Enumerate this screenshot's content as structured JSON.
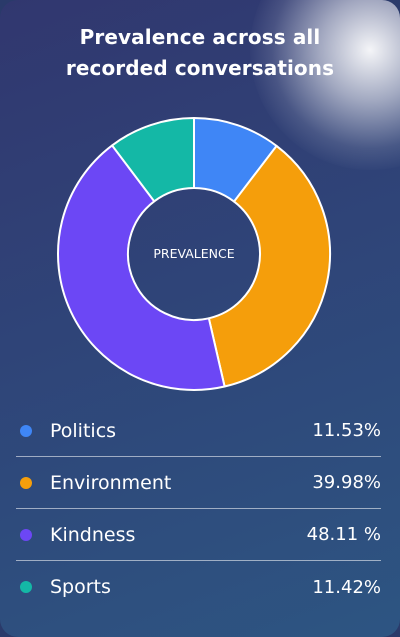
{
  "title": "Prevalence across all recorded conversations",
  "chart_data": {
    "type": "pie",
    "center_label": "PREVALENCE",
    "categories": [
      "Politics",
      "Environment",
      "Kindness",
      "Sports"
    ],
    "values": [
      11.53,
      39.98,
      48.11,
      11.42
    ],
    "value_labels": [
      "11.53%",
      "39.98%",
      "48.11 %",
      "11.42%"
    ],
    "colors": [
      "#3f86f6",
      "#f59e0b",
      "#6c47f5",
      "#14b8a6"
    ]
  }
}
